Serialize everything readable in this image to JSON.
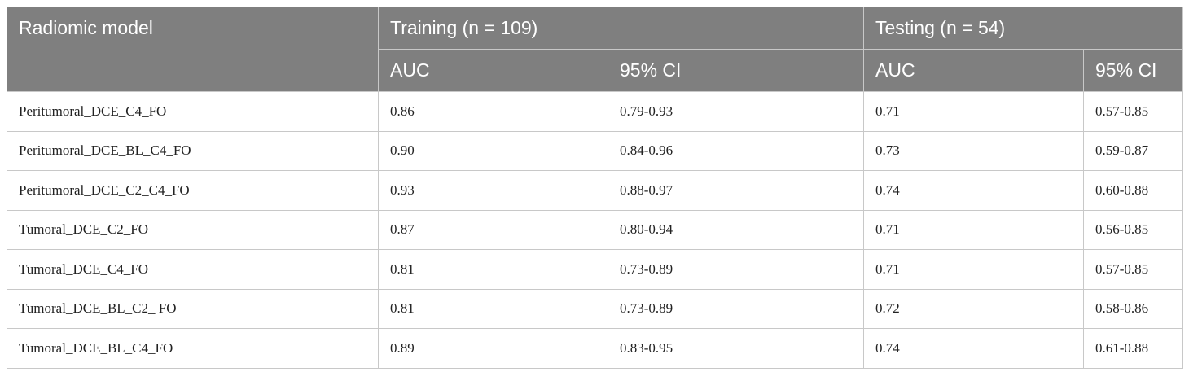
{
  "table": {
    "header": {
      "model": "Radiomic model",
      "groups": [
        "Training (n = 109)",
        "Testing (n = 54)"
      ],
      "subheaders": [
        "AUC",
        "95% CI",
        "AUC",
        "95% CI"
      ]
    },
    "rows": [
      [
        "Peritumoral_DCE_C4_FO",
        "0.86",
        "0.79-0.93",
        "0.71",
        "0.57-0.85"
      ],
      [
        "Peritumoral_DCE_BL_C4_FO",
        "0.90",
        "0.84-0.96",
        "0.73",
        "0.59-0.87"
      ],
      [
        "Peritumoral_DCE_C2_C4_FO",
        "0.93",
        "0.88-0.97",
        "0.74",
        "0.60-0.88"
      ],
      [
        "Tumoral_DCE_C2_FO",
        "0.87",
        "0.80-0.94",
        "0.71",
        "0.56-0.85"
      ],
      [
        "Tumoral_DCE_C4_FO",
        "0.81",
        "0.73-0.89",
        "0.71",
        "0.57-0.85"
      ],
      [
        "Tumoral_DCE_BL_C2_ FO",
        "0.81",
        "0.73-0.89",
        "0.72",
        "0.58-0.86"
      ],
      [
        "Tumoral_DCE_BL_C4_FO",
        "0.89",
        "0.83-0.95",
        "0.74",
        "0.61-0.88"
      ]
    ]
  }
}
